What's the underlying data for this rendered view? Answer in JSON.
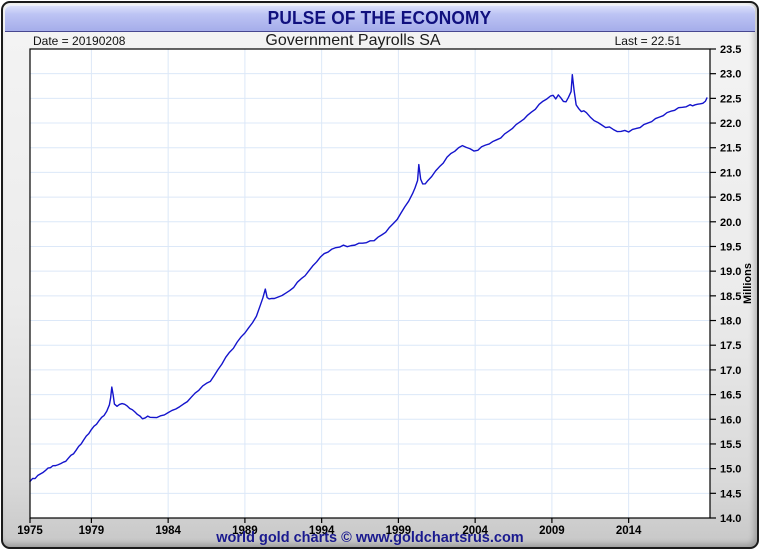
{
  "window": {
    "title": "PULSE OF THE ECONOMY"
  },
  "header": {
    "date": "Date = 20190208",
    "subtitle": "Government Payrolls SA",
    "last": "Last = 22.51"
  },
  "footer": {
    "attribution": "world gold charts © www.goldchartsrus.com"
  },
  "chart_data": {
    "type": "line",
    "title": "Government Payrolls SA",
    "xlabel": "",
    "ylabel": "Millions",
    "xlim": [
      1975,
      2019.3
    ],
    "ylim": [
      14.0,
      23.5
    ],
    "y_tick_step": 0.5,
    "x_ticks": [
      1975,
      1979,
      1984,
      1989,
      1994,
      1999,
      2004,
      2009,
      2014
    ],
    "grid": true,
    "legend_position": "none",
    "last_value": 22.51,
    "colors": {
      "line": "#1414cc",
      "grid": "#dce8f8",
      "plot_bg": "#ffffff",
      "axis": "#000000",
      "title_text": "#10107e",
      "attribution_text": "#1a1a8f",
      "titlebar_top": "#dfe3fb",
      "titlebar_bottom": "#a5adea"
    },
    "series": [
      {
        "name": "Government Payrolls SA",
        "points": [
          [
            1975.0,
            14.74
          ],
          [
            1975.17,
            14.79
          ],
          [
            1975.33,
            14.81
          ],
          [
            1975.5,
            14.86
          ],
          [
            1975.67,
            14.88
          ],
          [
            1975.83,
            14.93
          ],
          [
            1976.0,
            14.96
          ],
          [
            1976.17,
            15.0
          ],
          [
            1976.33,
            15.03
          ],
          [
            1976.5,
            15.06
          ],
          [
            1976.67,
            15.05
          ],
          [
            1976.83,
            15.09
          ],
          [
            1977.0,
            15.1
          ],
          [
            1977.17,
            15.12
          ],
          [
            1977.33,
            15.16
          ],
          [
            1977.5,
            15.21
          ],
          [
            1977.67,
            15.26
          ],
          [
            1977.83,
            15.31
          ],
          [
            1978.0,
            15.37
          ],
          [
            1978.17,
            15.44
          ],
          [
            1978.33,
            15.51
          ],
          [
            1978.5,
            15.58
          ],
          [
            1978.67,
            15.65
          ],
          [
            1978.83,
            15.72
          ],
          [
            1979.0,
            15.79
          ],
          [
            1979.17,
            15.85
          ],
          [
            1979.33,
            15.91
          ],
          [
            1979.5,
            15.97
          ],
          [
            1979.67,
            16.03
          ],
          [
            1979.83,
            16.09
          ],
          [
            1980.0,
            16.16
          ],
          [
            1980.17,
            16.28
          ],
          [
            1980.25,
            16.44
          ],
          [
            1980.33,
            16.65
          ],
          [
            1980.42,
            16.48
          ],
          [
            1980.5,
            16.32
          ],
          [
            1980.67,
            16.26
          ],
          [
            1980.83,
            16.29
          ],
          [
            1981.0,
            16.33
          ],
          [
            1981.17,
            16.3
          ],
          [
            1981.33,
            16.26
          ],
          [
            1981.5,
            16.23
          ],
          [
            1981.67,
            16.19
          ],
          [
            1981.83,
            16.14
          ],
          [
            1982.0,
            16.11
          ],
          [
            1982.17,
            16.06
          ],
          [
            1982.33,
            16.0
          ],
          [
            1982.5,
            16.04
          ],
          [
            1982.67,
            16.06
          ],
          [
            1982.83,
            16.03
          ],
          [
            1983.0,
            16.05
          ],
          [
            1983.25,
            16.03
          ],
          [
            1983.5,
            16.06
          ],
          [
            1983.75,
            16.1
          ],
          [
            1984.0,
            16.13
          ],
          [
            1984.25,
            16.17
          ],
          [
            1984.5,
            16.22
          ],
          [
            1984.75,
            16.25
          ],
          [
            1985.0,
            16.3
          ],
          [
            1985.25,
            16.37
          ],
          [
            1985.5,
            16.44
          ],
          [
            1985.75,
            16.52
          ],
          [
            1986.0,
            16.6
          ],
          [
            1986.25,
            16.67
          ],
          [
            1986.5,
            16.72
          ],
          [
            1986.75,
            16.78
          ],
          [
            1987.0,
            16.88
          ],
          [
            1987.25,
            17.0
          ],
          [
            1987.5,
            17.13
          ],
          [
            1987.75,
            17.25
          ],
          [
            1988.0,
            17.35
          ],
          [
            1988.25,
            17.45
          ],
          [
            1988.5,
            17.56
          ],
          [
            1988.75,
            17.66
          ],
          [
            1989.0,
            17.76
          ],
          [
            1989.25,
            17.85
          ],
          [
            1989.5,
            17.95
          ],
          [
            1989.75,
            18.1
          ],
          [
            1990.0,
            18.3
          ],
          [
            1990.17,
            18.45
          ],
          [
            1990.33,
            18.65
          ],
          [
            1990.45,
            18.46
          ],
          [
            1990.58,
            18.43
          ],
          [
            1990.75,
            18.46
          ],
          [
            1990.92,
            18.44
          ],
          [
            1991.17,
            18.47
          ],
          [
            1991.42,
            18.52
          ],
          [
            1991.67,
            18.55
          ],
          [
            1991.92,
            18.6
          ],
          [
            1992.17,
            18.68
          ],
          [
            1992.42,
            18.77
          ],
          [
            1992.67,
            18.84
          ],
          [
            1992.92,
            18.92
          ],
          [
            1993.17,
            19.0
          ],
          [
            1993.42,
            19.1
          ],
          [
            1993.67,
            19.2
          ],
          [
            1993.92,
            19.28
          ],
          [
            1994.17,
            19.35
          ],
          [
            1994.42,
            19.4
          ],
          [
            1994.67,
            19.44
          ],
          [
            1994.92,
            19.47
          ],
          [
            1995.17,
            19.5
          ],
          [
            1995.42,
            19.52
          ],
          [
            1995.67,
            19.49
          ],
          [
            1995.92,
            19.53
          ],
          [
            1996.17,
            19.52
          ],
          [
            1996.42,
            19.56
          ],
          [
            1996.67,
            19.58
          ],
          [
            1996.92,
            19.57
          ],
          [
            1997.17,
            19.61
          ],
          [
            1997.42,
            19.63
          ],
          [
            1997.67,
            19.68
          ],
          [
            1997.92,
            19.73
          ],
          [
            1998.17,
            19.8
          ],
          [
            1998.42,
            19.88
          ],
          [
            1998.67,
            19.96
          ],
          [
            1998.92,
            20.06
          ],
          [
            1999.17,
            20.17
          ],
          [
            1999.42,
            20.3
          ],
          [
            1999.67,
            20.43
          ],
          [
            1999.92,
            20.56
          ],
          [
            2000.08,
            20.68
          ],
          [
            2000.25,
            20.85
          ],
          [
            2000.33,
            21.15
          ],
          [
            2000.45,
            20.86
          ],
          [
            2000.58,
            20.78
          ],
          [
            2000.75,
            20.76
          ],
          [
            2000.92,
            20.83
          ],
          [
            2001.17,
            20.93
          ],
          [
            2001.42,
            21.02
          ],
          [
            2001.67,
            21.11
          ],
          [
            2001.92,
            21.2
          ],
          [
            2002.17,
            21.3
          ],
          [
            2002.42,
            21.38
          ],
          [
            2002.67,
            21.44
          ],
          [
            2002.92,
            21.49
          ],
          [
            2003.17,
            21.54
          ],
          [
            2003.42,
            21.52
          ],
          [
            2003.67,
            21.47
          ],
          [
            2003.92,
            21.43
          ],
          [
            2004.17,
            21.46
          ],
          [
            2004.42,
            21.51
          ],
          [
            2004.67,
            21.55
          ],
          [
            2004.92,
            21.59
          ],
          [
            2005.17,
            21.62
          ],
          [
            2005.42,
            21.66
          ],
          [
            2005.67,
            21.71
          ],
          [
            2005.92,
            21.77
          ],
          [
            2006.17,
            21.83
          ],
          [
            2006.42,
            21.9
          ],
          [
            2006.67,
            21.96
          ],
          [
            2006.92,
            22.02
          ],
          [
            2007.17,
            22.09
          ],
          [
            2007.42,
            22.15
          ],
          [
            2007.67,
            22.22
          ],
          [
            2007.92,
            22.29
          ],
          [
            2008.17,
            22.37
          ],
          [
            2008.42,
            22.44
          ],
          [
            2008.67,
            22.5
          ],
          [
            2008.92,
            22.54
          ],
          [
            2009.08,
            22.56
          ],
          [
            2009.25,
            22.5
          ],
          [
            2009.42,
            22.56
          ],
          [
            2009.58,
            22.51
          ],
          [
            2009.75,
            22.45
          ],
          [
            2009.92,
            22.42
          ],
          [
            2010.08,
            22.52
          ],
          [
            2010.25,
            22.65
          ],
          [
            2010.33,
            22.97
          ],
          [
            2010.45,
            22.65
          ],
          [
            2010.58,
            22.38
          ],
          [
            2010.75,
            22.28
          ],
          [
            2010.92,
            22.23
          ],
          [
            2011.08,
            22.26
          ],
          [
            2011.25,
            22.2
          ],
          [
            2011.5,
            22.12
          ],
          [
            2011.75,
            22.06
          ],
          [
            2012.0,
            22.0
          ],
          [
            2012.25,
            21.96
          ],
          [
            2012.5,
            21.92
          ],
          [
            2012.75,
            21.91
          ],
          [
            2013.0,
            21.87
          ],
          [
            2013.25,
            21.84
          ],
          [
            2013.5,
            21.82
          ],
          [
            2013.75,
            21.85
          ],
          [
            2014.0,
            21.83
          ],
          [
            2014.25,
            21.86
          ],
          [
            2014.5,
            21.89
          ],
          [
            2014.75,
            21.92
          ],
          [
            2015.0,
            21.96
          ],
          [
            2015.25,
            22.0
          ],
          [
            2015.5,
            22.04
          ],
          [
            2015.75,
            22.08
          ],
          [
            2016.0,
            22.12
          ],
          [
            2016.25,
            22.16
          ],
          [
            2016.5,
            22.2
          ],
          [
            2016.75,
            22.24
          ],
          [
            2017.0,
            22.27
          ],
          [
            2017.25,
            22.3
          ],
          [
            2017.5,
            22.32
          ],
          [
            2017.75,
            22.34
          ],
          [
            2018.0,
            22.36
          ],
          [
            2018.17,
            22.35
          ],
          [
            2018.33,
            22.38
          ],
          [
            2018.5,
            22.37
          ],
          [
            2018.67,
            22.39
          ],
          [
            2018.83,
            22.41
          ],
          [
            2019.0,
            22.43
          ],
          [
            2019.1,
            22.51
          ]
        ]
      }
    ]
  }
}
